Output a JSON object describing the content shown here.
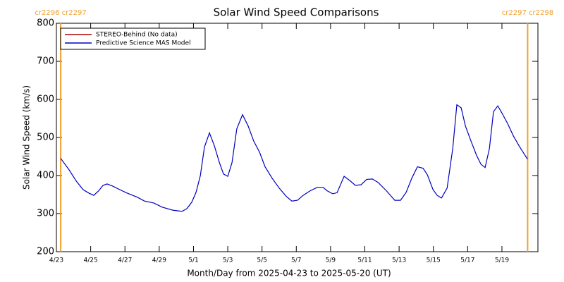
{
  "chart_data": {
    "type": "line",
    "title": "Solar Wind Speed Comparisons",
    "xlabel": "Month/Day from 2025-04-23 to 2025-05-20 (UT)",
    "ylabel": "Solar Wind Speed (km/s)",
    "xlim": [
      0,
      28.1
    ],
    "ylim": [
      200,
      800
    ],
    "yticks": [
      200,
      300,
      400,
      500,
      600,
      700,
      800
    ],
    "xticks": [
      {
        "value": 0,
        "label": "4/23"
      },
      {
        "value": 2,
        "label": "4/25"
      },
      {
        "value": 4,
        "label": "4/27"
      },
      {
        "value": 6,
        "label": "4/29"
      },
      {
        "value": 8,
        "label": "5/1"
      },
      {
        "value": 10,
        "label": "5/3"
      },
      {
        "value": 12,
        "label": "5/5"
      },
      {
        "value": 14,
        "label": "5/7"
      },
      {
        "value": 16,
        "label": "5/9"
      },
      {
        "value": 18,
        "label": "5/11"
      },
      {
        "value": 20,
        "label": "5/13"
      },
      {
        "value": 22,
        "label": "5/15"
      },
      {
        "value": 24,
        "label": "5/17"
      },
      {
        "value": 26,
        "label": "5/19"
      }
    ],
    "annotations": [
      {
        "x": 0.25,
        "label": "cr2296 cr2297",
        "color": "#f0a030"
      },
      {
        "x": 27.5,
        "label": "cr2297 cr2298",
        "color": "#f0a030"
      }
    ],
    "legend": "upper left",
    "series": [
      {
        "name": "STEREO-Behind (No data)",
        "color": "#b00000"
      },
      {
        "name": "Predictive Science MAS Model",
        "color": "#0000c0",
        "x": [
          0.25,
          0.74,
          1.15,
          1.56,
          1.89,
          2.18,
          2.47,
          2.72,
          2.96,
          3.29,
          3.7,
          4.12,
          4.73,
          5.14,
          5.68,
          6.17,
          6.79,
          7.33,
          7.61,
          7.9,
          8.15,
          8.4,
          8.64,
          8.93,
          9.22,
          9.51,
          9.75,
          10.0,
          10.25,
          10.53,
          10.86,
          11.19,
          11.52,
          11.85,
          12.18,
          12.59,
          13.0,
          13.42,
          13.74,
          14.07,
          14.4,
          14.81,
          15.23,
          15.56,
          15.8,
          16.13,
          16.38,
          16.79,
          17.12,
          17.45,
          17.78,
          18.11,
          18.44,
          18.77,
          19.26,
          19.75,
          20.08,
          20.41,
          20.74,
          21.07,
          21.4,
          21.65,
          21.98,
          22.22,
          22.47,
          22.8,
          23.13,
          23.37,
          23.62,
          23.87,
          24.2,
          24.53,
          24.77,
          25.02,
          25.27,
          25.51,
          25.76,
          26.0,
          26.34,
          26.67,
          27.0,
          27.49
        ],
        "values": [
          445,
          415,
          386,
          363,
          354,
          348,
          360,
          374,
          378,
          372,
          363,
          354,
          343,
          333,
          328,
          317,
          309,
          306,
          313,
          330,
          356,
          400,
          475,
          512,
          478,
          434,
          404,
          398,
          434,
          523,
          560,
          530,
          490,
          462,
          423,
          393,
          367,
          345,
          333,
          335,
          348,
          360,
          369,
          369,
          360,
          352,
          355,
          398,
          387,
          374,
          376,
          390,
          391,
          382,
          360,
          335,
          335,
          356,
          393,
          423,
          419,
          402,
          363,
          348,
          341,
          367,
          471,
          586,
          578,
          530,
          490,
          452,
          430,
          421,
          471,
          568,
          583,
          564,
          536,
          504,
          478,
          443
        ]
      }
    ]
  }
}
